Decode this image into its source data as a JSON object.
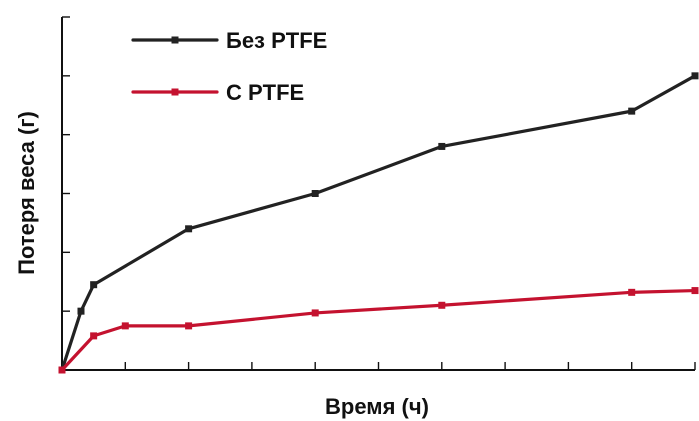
{
  "chart_data": {
    "type": "line",
    "xlabel": "Время (ч)",
    "ylabel": "Потеря веса (г)",
    "x_ticks": [
      0,
      5,
      10,
      15,
      20,
      25,
      30,
      35,
      40,
      45,
      50
    ],
    "y_ticks": [
      0,
      1,
      2,
      3,
      4,
      5,
      6
    ],
    "xlim": [
      0,
      50
    ],
    "ylim": [
      0,
      6
    ],
    "grid": false,
    "legend_position": "top-left",
    "series": [
      {
        "name": "Без PTFE",
        "color": "#222222",
        "x": [
          0,
          1.5,
          2.5,
          10,
          20,
          30,
          45,
          50
        ],
        "y": [
          0,
          1,
          1.45,
          2.4,
          3.0,
          3.8,
          4.4,
          5.0
        ]
      },
      {
        "name": "С PTFE",
        "color": "#c4122f",
        "x": [
          0,
          2.5,
          5,
          10,
          20,
          30,
          45,
          50
        ],
        "y": [
          0,
          0.58,
          0.75,
          0.75,
          0.97,
          1.1,
          1.32,
          1.35
        ]
      }
    ]
  }
}
